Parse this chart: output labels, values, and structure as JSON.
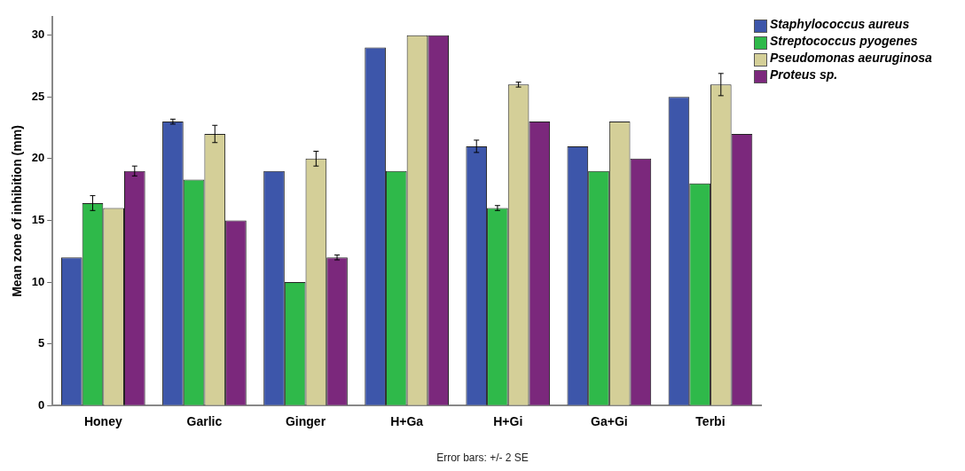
{
  "chart_data": {
    "type": "bar",
    "ylabel": "Mean zone of inhibition (mm)",
    "categories": [
      "Honey",
      "Garlic",
      "Ginger",
      "H+Ga",
      "H+Gi",
      "Ga+Gi",
      "Terbi"
    ],
    "series": [
      {
        "name": "Staphylococcus aureus",
        "color": "#3d56aa",
        "values": [
          12,
          23,
          19,
          29,
          21,
          21,
          25
        ],
        "errors": [
          null,
          0.2,
          null,
          null,
          0.5,
          null,
          null
        ]
      },
      {
        "name": "Streptococcus pyogenes",
        "color": "#2fb94a",
        "values": [
          16.4,
          18.3,
          10,
          19,
          16,
          19,
          18
        ],
        "errors": [
          0.6,
          null,
          null,
          null,
          0.2,
          null,
          null
        ]
      },
      {
        "name": "Pseudomonas aeuruginosa",
        "color": "#d4cf98",
        "values": [
          16,
          22,
          20,
          30,
          26,
          23,
          26
        ],
        "errors": [
          null,
          0.7,
          0.6,
          null,
          0.2,
          null,
          0.9
        ]
      },
      {
        "name": "Proteus sp.",
        "color": "#7b287c",
        "values": [
          19,
          15,
          12,
          30,
          23,
          20,
          22
        ],
        "errors": [
          0.4,
          null,
          0.2,
          null,
          null,
          null,
          null
        ]
      }
    ],
    "ylim": [
      0,
      31.5
    ],
    "yticks": [
      0,
      5,
      10,
      15,
      20,
      25,
      30
    ],
    "grid": false,
    "legend": "top right",
    "annotations": [
      "Error bars: +/- 2 SE"
    ]
  }
}
